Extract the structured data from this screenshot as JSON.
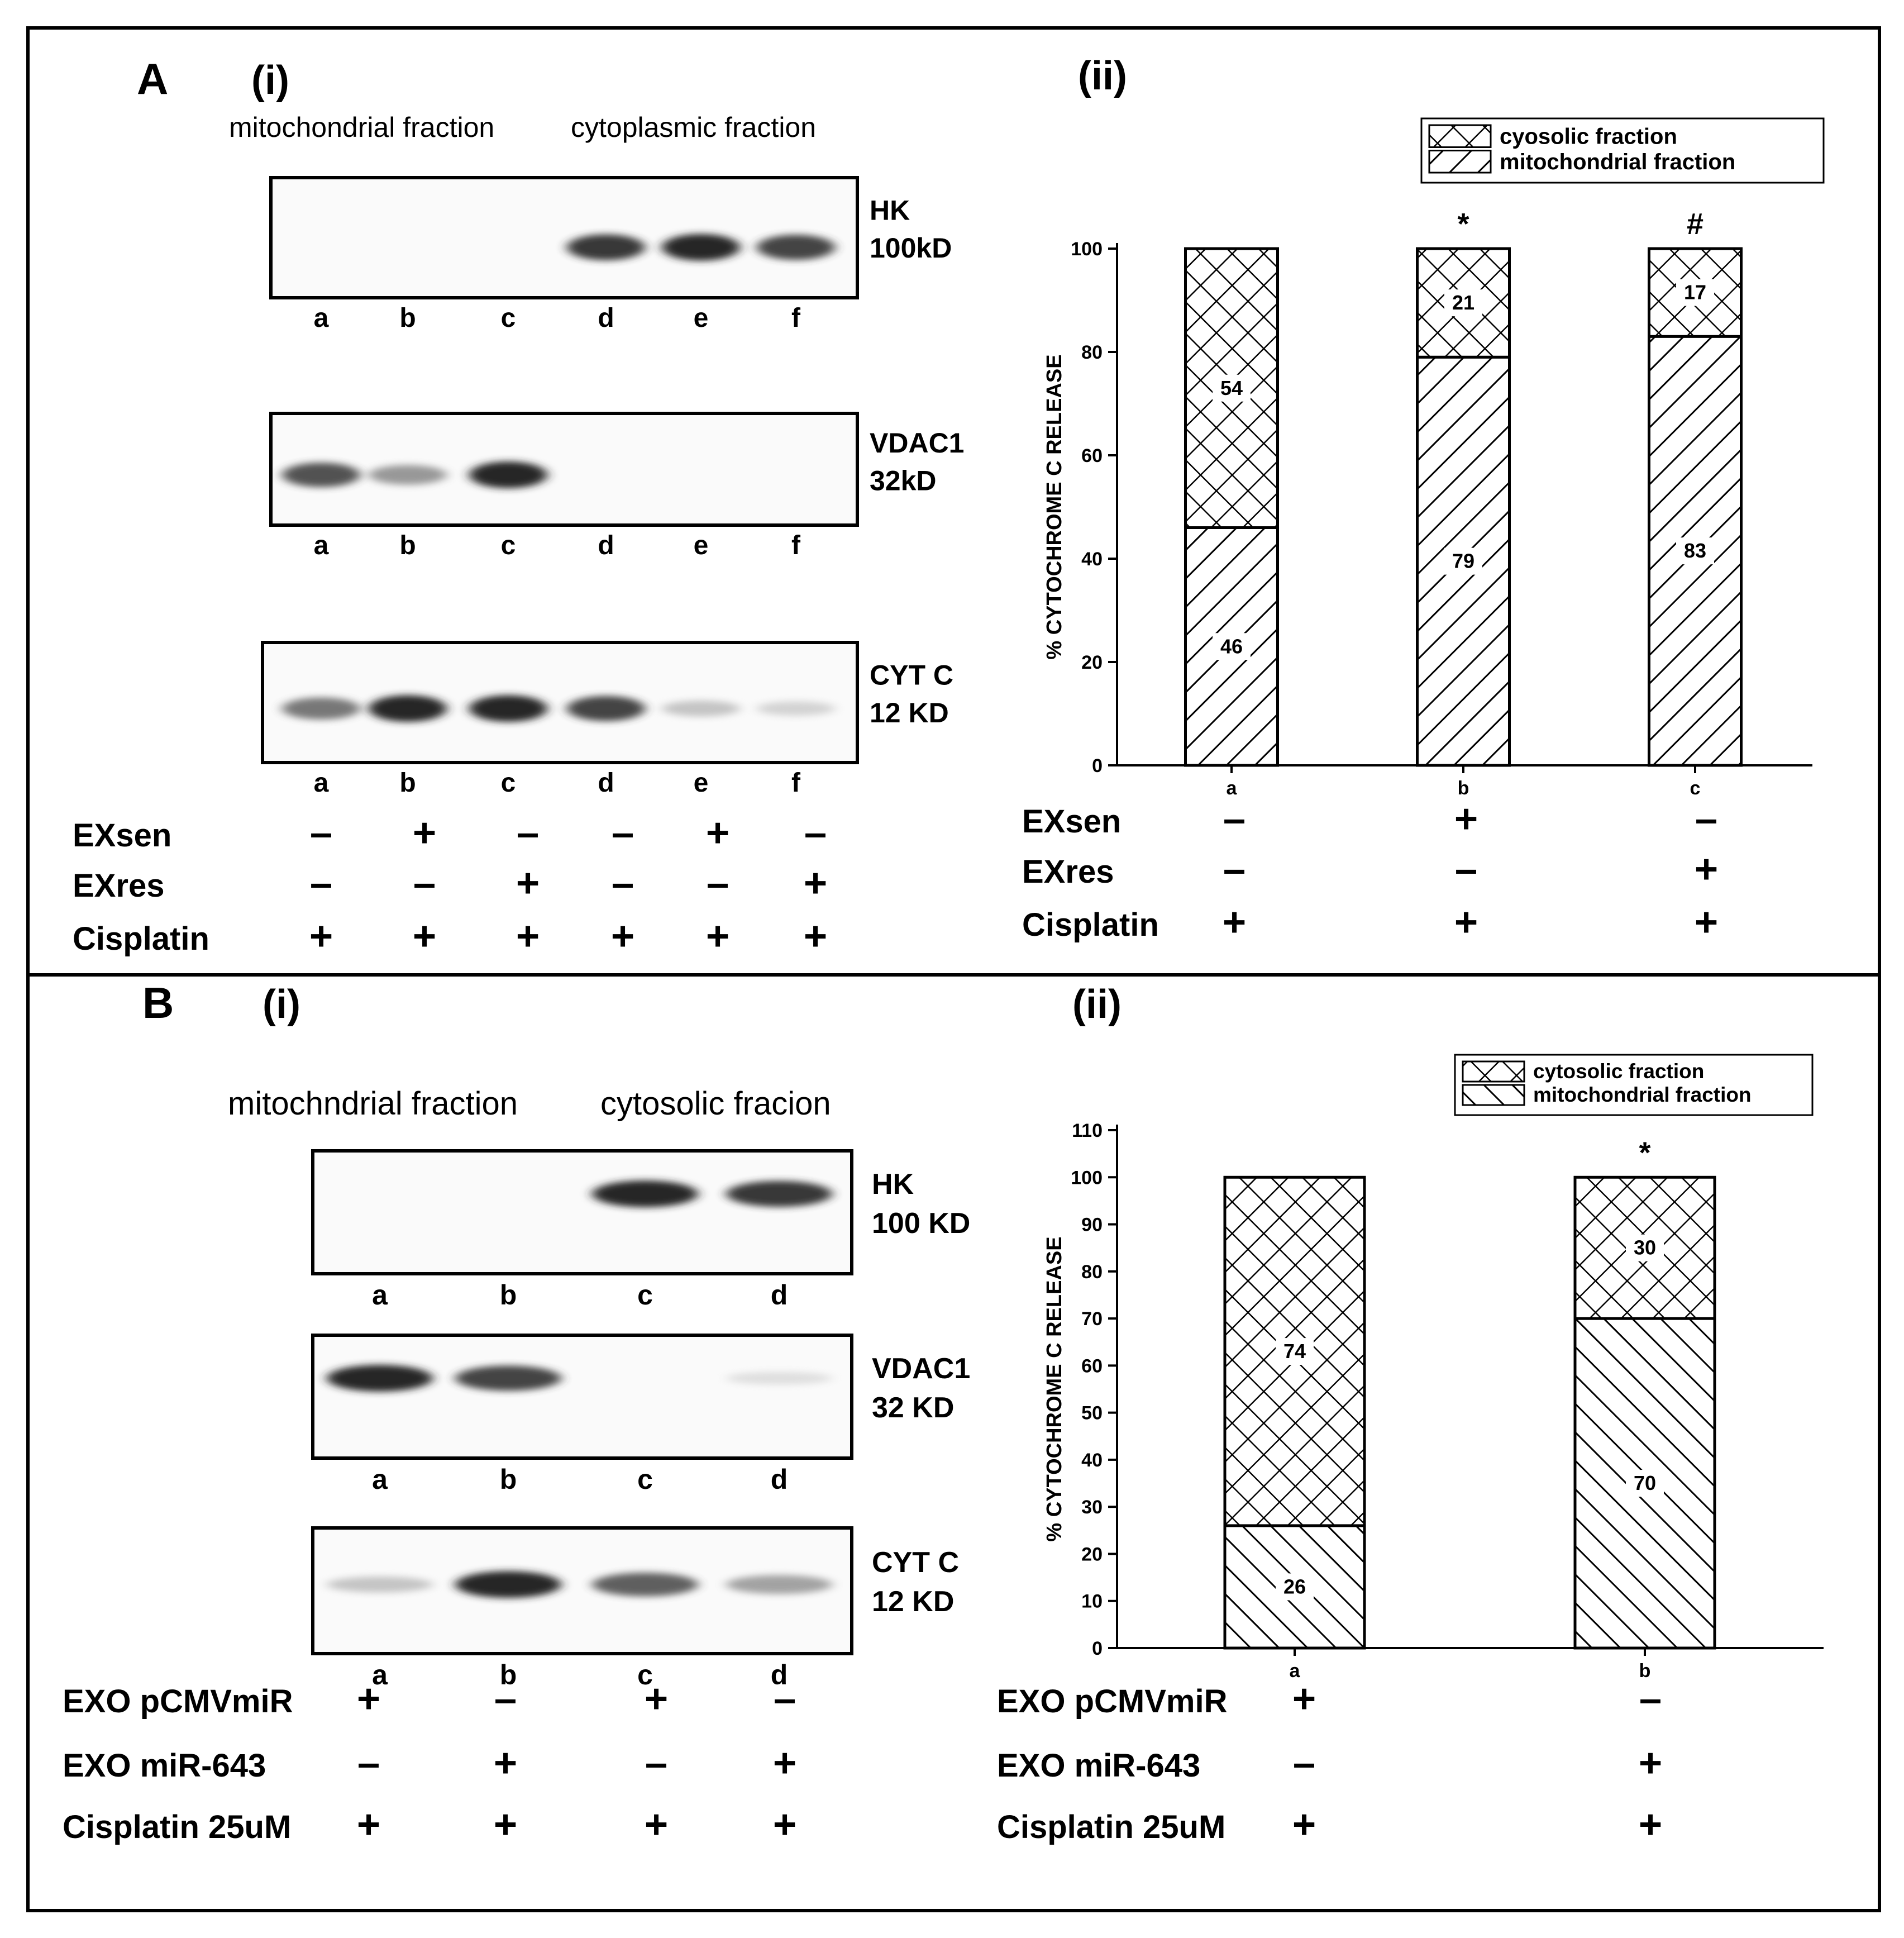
{
  "panelA": {
    "panel_label": "A",
    "sub_i": "(i)",
    "sub_ii": "(ii)",
    "blot_header_left": "mitochondrial fraction",
    "blot_header_right": "cytoplasmic fraction",
    "blots": [
      {
        "name_label": "HK",
        "mw_label": "100kD",
        "lanes": [
          "a",
          "b",
          "c",
          "d",
          "e",
          "f"
        ],
        "band_intensity": [
          0,
          0,
          0,
          0.95,
          1,
          0.9
        ]
      },
      {
        "name_label": "VDAC1",
        "mw_label": "32kD",
        "lanes": [
          "a",
          "b",
          "c",
          "d",
          "e",
          "f"
        ],
        "band_intensity": [
          0.85,
          0.55,
          1,
          0,
          0,
          0
        ]
      },
      {
        "name_label": "CYT C",
        "mw_label": "12 KD",
        "lanes": [
          "a",
          "b",
          "c",
          "d",
          "e",
          "f"
        ],
        "band_intensity": [
          0.7,
          1,
          1,
          0.9,
          0.3,
          0.2
        ]
      }
    ],
    "treatment_table": {
      "rows": [
        {
          "label": "EXsen",
          "marks": [
            "–",
            "+",
            "–",
            "–",
            "+",
            "–"
          ]
        },
        {
          "label": "EXres",
          "marks": [
            "–",
            "–",
            "+",
            "–",
            "–",
            "+"
          ]
        },
        {
          "label": "Cisplatin",
          "marks": [
            "+",
            "+",
            "+",
            "+",
            "+",
            "+"
          ]
        }
      ]
    },
    "chart_treatment_table": {
      "rows": [
        {
          "label": "EXsen",
          "marks": [
            "–",
            "+",
            "–"
          ]
        },
        {
          "label": "EXres",
          "marks": [
            "–",
            "–",
            "+"
          ]
        },
        {
          "label": "Cisplatin",
          "marks": [
            "+",
            "+",
            "+"
          ]
        }
      ]
    }
  },
  "panelB": {
    "panel_label": "B",
    "sub_i": "(i)",
    "sub_ii": "(ii)",
    "blot_header_left": "mitochndrial fraction",
    "blot_header_right": "cytosolic fracion",
    "blots": [
      {
        "name_label": "HK",
        "mw_label": "100 KD",
        "lanes": [
          "a",
          "b",
          "c",
          "d"
        ],
        "band_intensity": [
          0,
          0,
          1,
          0.95
        ]
      },
      {
        "name_label": "VDAC1",
        "mw_label": "32 KD",
        "lanes": [
          "a",
          "b",
          "c",
          "d"
        ],
        "band_intensity": [
          1,
          0.9,
          0,
          0.1
        ]
      },
      {
        "name_label": "CYT C",
        "mw_label": "12 KD",
        "lanes": [
          "a",
          "b",
          "c",
          "d"
        ],
        "band_intensity": [
          0.3,
          1,
          0.8,
          0.5
        ]
      }
    ],
    "treatment_table": {
      "rows": [
        {
          "label": "EXO pCMVmiR",
          "marks": [
            "+",
            "–",
            "+",
            "–"
          ]
        },
        {
          "label": "EXO miR-643",
          "marks": [
            "–",
            "+",
            "–",
            "+"
          ]
        },
        {
          "label": "Cisplatin 25uM",
          "marks": [
            "+",
            "+",
            "+",
            "+"
          ]
        }
      ]
    },
    "chart_treatment_table": {
      "rows": [
        {
          "label": "EXO pCMVmiR",
          "marks": [
            "+",
            "–"
          ]
        },
        {
          "label": "EXO miR-643",
          "marks": [
            "–",
            "+"
          ]
        },
        {
          "label": "Cisplatin 25uM",
          "marks": [
            "+",
            "+"
          ]
        }
      ]
    }
  },
  "chart_data": [
    {
      "type": "bar",
      "stacked": true,
      "categories": [
        "a",
        "b",
        "c"
      ],
      "series": [
        {
          "name": "mitochondrial fraction",
          "values": [
            46,
            79,
            83
          ]
        },
        {
          "name": "cyosolic fraction",
          "values": [
            54,
            21,
            17
          ]
        }
      ],
      "ylabel": "% CYTOCHROME C RELEASE",
      "ylim": [
        0,
        100
      ],
      "yticks": [
        0,
        20,
        40,
        60,
        80,
        100
      ],
      "significance": [
        "",
        "*",
        "#"
      ],
      "legend_position": "top-right",
      "grid": false
    },
    {
      "type": "bar",
      "stacked": true,
      "categories": [
        "a",
        "b"
      ],
      "series": [
        {
          "name": "mitochondrial fraction",
          "values": [
            26,
            70
          ]
        },
        {
          "name": "cytosolic fraction",
          "values": [
            74,
            30
          ]
        }
      ],
      "ylabel": "% CYTOCHROME C RELEASE",
      "ylim": [
        0,
        110
      ],
      "yticks": [
        0,
        10,
        20,
        30,
        40,
        50,
        60,
        70,
        80,
        90,
        100,
        110
      ],
      "significance": [
        "",
        "*"
      ],
      "legend_position": "top-right",
      "grid": false
    }
  ]
}
